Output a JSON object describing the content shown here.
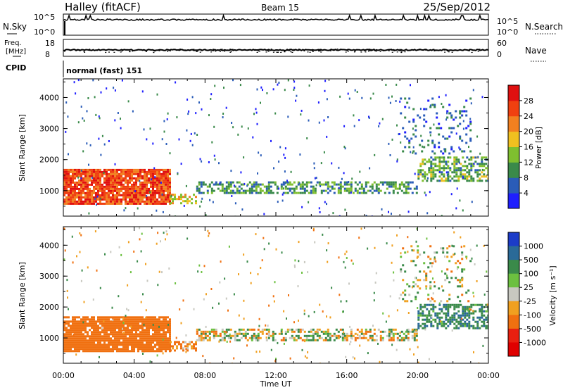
{
  "header": {
    "station": "Halley (fitACF)",
    "beam": "Beam 15",
    "date": "25/Sep/2012"
  },
  "noise_panel": {
    "left_label": "N.Sky",
    "right_label": "N.Search",
    "left_ticks": [
      "10^5",
      "10^0"
    ],
    "right_ticks": [
      "10^5",
      "10^0"
    ]
  },
  "freq_panel": {
    "left_label_line1": "Freq.",
    "left_label_line2": "[MHz]",
    "right_label": "Nave",
    "left_ticks": [
      "18",
      "8"
    ],
    "right_ticks": [
      "60",
      "0"
    ]
  },
  "cpid": {
    "label": "CPID",
    "value": "normal (fast) 151"
  },
  "power_panel": {
    "ylabel": "Slant Range [km]",
    "yticks": [
      "1000",
      "2000",
      "3000",
      "4000"
    ],
    "colorbar_label": "Power [dB]",
    "colorbar_ticks": [
      "4",
      "8",
      "12",
      "16",
      "20",
      "24",
      "28"
    ],
    "colorbar_colors": [
      "#1f1fff",
      "#2a5cb8",
      "#3a8a4a",
      "#7fbf2f",
      "#f0c020",
      "#f28020",
      "#f04010",
      "#e01010"
    ]
  },
  "velocity_panel": {
    "ylabel": "Slant Range [km]",
    "yticks": [
      "1000",
      "2000",
      "3000",
      "4000"
    ],
    "colorbar_label": "Velocity [m s⁻¹]",
    "colorbar_ticks": [
      "1000",
      "500",
      "100",
      "25",
      "-25",
      "-100",
      "-500",
      "-1000"
    ],
    "colorbar_colors": [
      "#1c3cc8",
      "#2a6a98",
      "#3a8a4a",
      "#6cc040",
      "#c8c8c0",
      "#f0a020",
      "#f07010",
      "#e82010",
      "#e00000"
    ]
  },
  "x_axis": {
    "xlabel": "Time UT",
    "ticks": [
      "00:00",
      "04:00",
      "08:00",
      "12:00",
      "16:00",
      "20:00",
      "00:00"
    ]
  },
  "chart_data": [
    {
      "type": "heatmap",
      "title": "Power [dB]",
      "xlabel": "Time UT",
      "ylabel": "Slant Range [km]",
      "xlim": [
        0,
        24
      ],
      "ylim": [
        180,
        4600
      ],
      "zlim": [
        0,
        30
      ],
      "regions": [
        {
          "t0": 0.0,
          "t1": 6.0,
          "r0": 600,
          "r1": 1700,
          "power": 26
        },
        {
          "t0": 6.0,
          "t1": 7.5,
          "r0": 600,
          "r1": 900,
          "power": 17
        },
        {
          "t0": 7.5,
          "t1": 20.0,
          "r0": 900,
          "r1": 1300,
          "power": 10
        },
        {
          "t0": 20.0,
          "t1": 24.0,
          "r0": 1300,
          "r1": 2100,
          "power": 12
        },
        {
          "t0": 19.0,
          "t1": 23.0,
          "r0": 2200,
          "r1": 4000,
          "power": 7
        }
      ]
    },
    {
      "type": "heatmap",
      "title": "Velocity [m s⁻¹]",
      "xlabel": "Time UT",
      "ylabel": "Slant Range [km]",
      "xlim": [
        0,
        24
      ],
      "ylim": [
        180,
        4600
      ],
      "zlim": [
        -1000,
        1000
      ],
      "regions": [
        {
          "t0": 0.0,
          "t1": 6.0,
          "r0": 600,
          "r1": 1700,
          "velocity": -300
        },
        {
          "t0": 6.0,
          "t1": 7.5,
          "r0": 600,
          "r1": 900,
          "velocity": -150
        },
        {
          "t0": 7.5,
          "t1": 20.0,
          "r0": 900,
          "r1": 1300,
          "velocity": 0
        },
        {
          "t0": 20.0,
          "t1": 24.0,
          "r0": 1300,
          "r1": 2100,
          "velocity": 200
        },
        {
          "t0": 19.0,
          "t1": 23.0,
          "r0": 2200,
          "r1": 4000,
          "velocity": 0
        }
      ]
    }
  ]
}
